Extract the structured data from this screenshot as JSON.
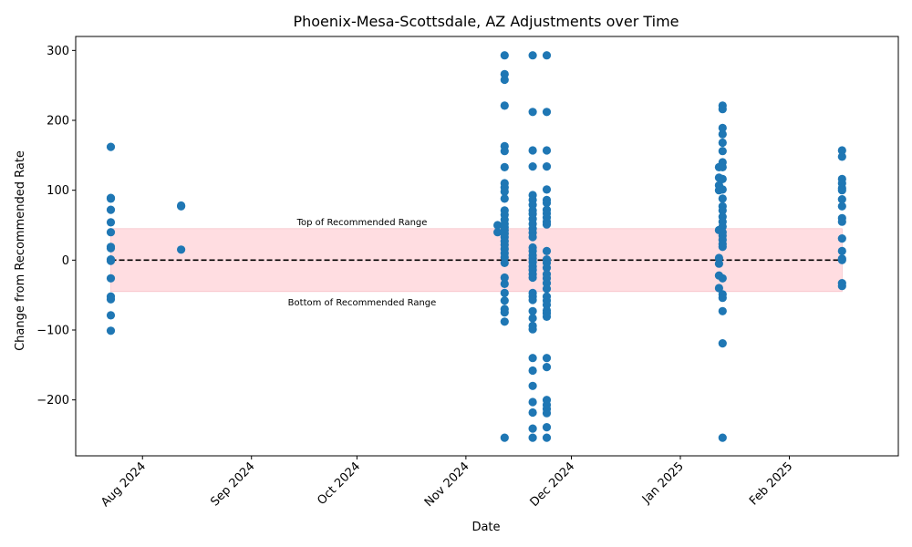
{
  "chart_data": {
    "type": "scatter",
    "title": "Phoenix-Mesa-Scottsdale, AZ Adjustments over Time",
    "xlabel": "Date",
    "ylabel": "Change from Recommended Rate",
    "xlim": [
      "2024-07-13",
      "2025-03-04"
    ],
    "ylim": [
      -280,
      320
    ],
    "x_ticks": [
      {
        "date": "2024-08-01",
        "label": "Aug 2024"
      },
      {
        "date": "2024-09-01",
        "label": "Sep 2024"
      },
      {
        "date": "2024-10-01",
        "label": "Oct 2024"
      },
      {
        "date": "2024-11-01",
        "label": "Nov 2024"
      },
      {
        "date": "2024-12-01",
        "label": "Dec 2024"
      },
      {
        "date": "2025-01-01",
        "label": "Jan 2025"
      },
      {
        "date": "2025-02-01",
        "label": "Feb 2025"
      }
    ],
    "y_ticks": [
      -200,
      -100,
      0,
      100,
      200,
      300
    ],
    "point_color": "#1f77b4",
    "recommended_range": {
      "top": 45,
      "bottom": -45,
      "top_label": "Top of Recommended Range",
      "bottom_label": "Bottom of Recommended Range",
      "fill_color": "#ffdde1",
      "start": "2024-07-23",
      "end": "2025-02-16"
    },
    "baseline": {
      "y": 0,
      "style": "dashed",
      "color": "#000000"
    },
    "points": [
      {
        "x": "2024-07-23",
        "ys": [
          162,
          89,
          88,
          72,
          54,
          40,
          19,
          17,
          1,
          -1,
          -26,
          -52,
          -56,
          -79,
          -101
        ]
      },
      {
        "x": "2024-08-12",
        "ys": [
          78,
          77,
          15
        ]
      },
      {
        "x": "2024-11-10",
        "ys": [
          50,
          40
        ]
      },
      {
        "x": "2024-11-12",
        "ys": [
          293,
          266,
          258,
          221,
          163,
          156,
          133,
          110,
          104,
          98,
          88,
          71,
          65,
          58,
          52,
          47,
          43,
          38,
          33,
          27,
          22,
          16,
          10,
          4,
          -4,
          -25,
          -34,
          -47,
          -58,
          -70,
          -75,
          -88,
          -254
        ]
      },
      {
        "x": "2024-11-20",
        "ys": [
          293,
          212,
          157,
          134,
          93,
          86,
          79,
          71,
          66,
          59,
          52,
          45,
          39,
          33,
          18,
          13,
          7,
          2,
          -3,
          -9,
          -14,
          -20,
          -25,
          -47,
          -52,
          -57,
          -73,
          -83,
          -94,
          -99,
          -140,
          -158,
          -180,
          -203,
          -218,
          -241,
          -254
        ]
      },
      {
        "x": "2024-11-24",
        "ys": [
          293,
          212,
          157,
          134,
          101,
          86,
          82,
          72,
          67,
          61,
          55,
          51,
          13,
          1,
          -4,
          -11,
          -20,
          -26,
          -33,
          -41,
          -52,
          -58,
          -64,
          -72,
          -76,
          -81,
          -140,
          -153,
          -200,
          -207,
          -213,
          -219,
          -239,
          -254
        ]
      },
      {
        "x": "2025-01-12",
        "ys": [
          133,
          118,
          107,
          100,
          43,
          3,
          -5,
          -22,
          -40
        ]
      },
      {
        "x": "2025-01-13",
        "ys": [
          221,
          216,
          189,
          180,
          168,
          156,
          140,
          133,
          116,
          101,
          88,
          77,
          71,
          62,
          55,
          48,
          40,
          35,
          29,
          23,
          19,
          -26,
          -49,
          -54,
          -73,
          -119,
          -254
        ]
      },
      {
        "x": "2025-02-16",
        "ys": [
          157,
          148,
          116,
          110,
          103,
          100,
          87,
          77,
          60,
          55,
          31,
          13,
          2,
          0,
          -33,
          -37
        ]
      }
    ]
  }
}
